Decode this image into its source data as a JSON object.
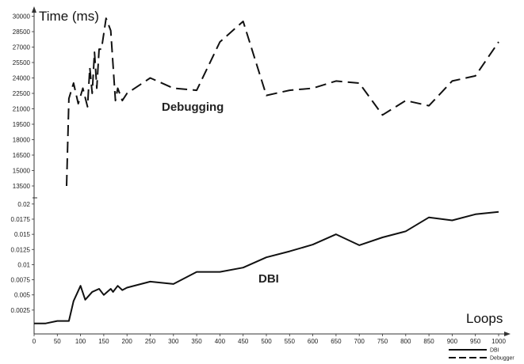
{
  "chart_data": {
    "type": "line",
    "title": "",
    "ylabel": "Time (ms)",
    "xlabel": "Loops",
    "x_ticks": [
      "0",
      "50",
      "100",
      "150",
      "200",
      "250",
      "300",
      "350",
      "400",
      "450",
      "500",
      "550",
      "600",
      "650",
      "700",
      "750",
      "800",
      "850",
      "900",
      "950",
      "1000"
    ],
    "xlim": [
      0,
      1000
    ],
    "upper_y_ticks": [
      "13500",
      "15000",
      "16500",
      "18000",
      "19500",
      "21000",
      "22500",
      "24000",
      "25500",
      "27000",
      "28500",
      "30000"
    ],
    "upper_ylim": [
      12500,
      30500
    ],
    "lower_y_ticks": [
      "0.0025",
      "0.005",
      "0.0075",
      "0.01",
      "0.0125",
      "0.015",
      "0.0175",
      "0.02"
    ],
    "lower_ylim": [
      0,
      0.0205
    ],
    "legend_position": "bottom-right",
    "annotations": {
      "debugging": "Debugging",
      "dbi": "DBI"
    },
    "series": [
      {
        "name": "Debugger",
        "panel": "upper",
        "style": "dashed",
        "x": [
          70,
          75,
          85,
          95,
          105,
          115,
          120,
          125,
          130,
          135,
          140,
          145,
          155,
          160,
          165,
          175,
          180,
          190,
          200,
          250,
          300,
          350,
          400,
          450,
          500,
          550,
          600,
          650,
          700,
          750,
          800,
          850,
          900,
          950,
          1000
        ],
        "y": [
          13500,
          22000,
          23500,
          21500,
          23000,
          21200,
          25000,
          22500,
          26500,
          23000,
          26800,
          26800,
          29800,
          29200,
          28600,
          21800,
          23000,
          21800,
          22500,
          24000,
          23000,
          22800,
          27500,
          29500,
          22300,
          22800,
          23000,
          23700,
          23500,
          20400,
          21800,
          21300,
          23700,
          24200,
          27500
        ]
      },
      {
        "name": "DBI",
        "panel": "lower",
        "style": "solid",
        "x": [
          0,
          25,
          50,
          75,
          85,
          100,
          110,
          125,
          140,
          150,
          165,
          170,
          180,
          190,
          200,
          250,
          300,
          350,
          400,
          450,
          500,
          550,
          600,
          650,
          700,
          750,
          800,
          850,
          900,
          950,
          1000
        ],
        "y": [
          0.0003,
          0.0003,
          0.0007,
          0.0007,
          0.004,
          0.0065,
          0.0042,
          0.0055,
          0.006,
          0.005,
          0.006,
          0.0055,
          0.0065,
          0.0058,
          0.0062,
          0.0072,
          0.0068,
          0.0088,
          0.0088,
          0.0095,
          0.0112,
          0.0122,
          0.0133,
          0.015,
          0.0132,
          0.0145,
          0.0155,
          0.0178,
          0.0173,
          0.0183,
          0.0187
        ]
      }
    ]
  }
}
